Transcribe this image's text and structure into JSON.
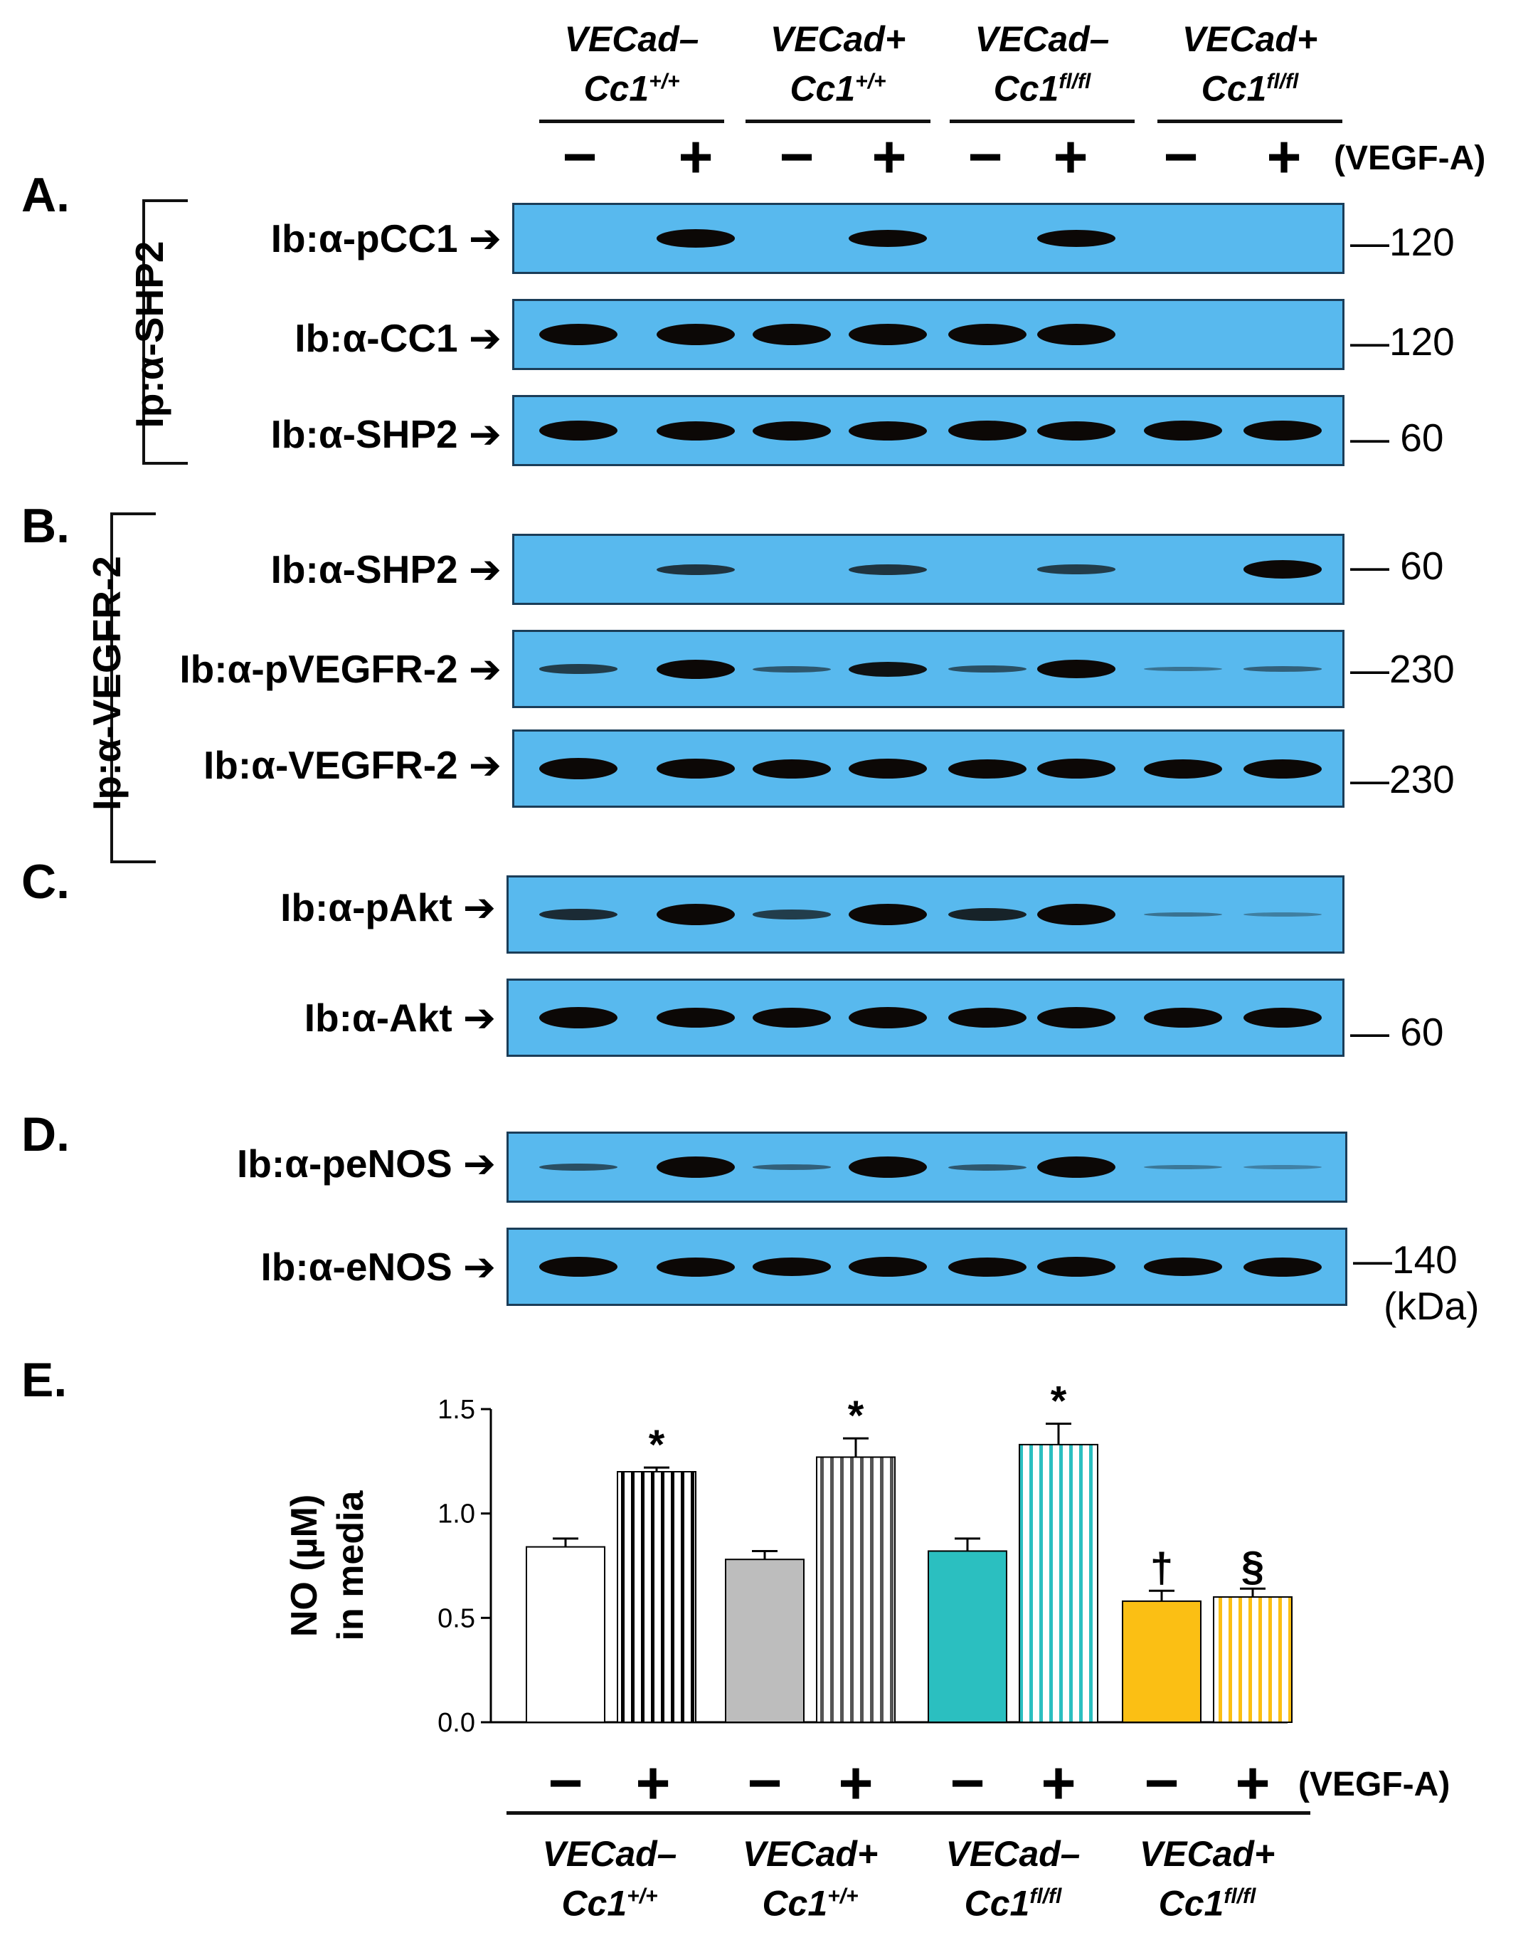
{
  "groups": [
    {
      "top": "VECad–",
      "bottom_base": "Cc1",
      "bottom_sup": "+/+"
    },
    {
      "top": "VECad+",
      "bottom_base": "Cc1",
      "bottom_sup": "+/+"
    },
    {
      "top": "VECad–",
      "bottom_base": "Cc1",
      "bottom_sup": "fl/fl"
    },
    {
      "top": "VECad+",
      "bottom_base": "Cc1",
      "bottom_sup": "fl/fl"
    }
  ],
  "treatment": {
    "minus": "−",
    "plus": "+",
    "label": "(VEGF-A)"
  },
  "panels": {
    "A": {
      "letter": "A.",
      "ip": "Ip:α-SHP2"
    },
    "B": {
      "letter": "B.",
      "ip": "Ip:α-VEGFR-2"
    },
    "C": {
      "letter": "C."
    },
    "D": {
      "letter": "D."
    },
    "E": {
      "letter": "E."
    }
  },
  "blots": [
    {
      "label": "Ib:α-pCC1 ➔",
      "mw": "—120",
      "bands": [
        0,
        0.85,
        0,
        0.8,
        0,
        0.8,
        0,
        0
      ]
    },
    {
      "label": "Ib:α-CC1 ➔",
      "mw": "—120",
      "bands": [
        1,
        1,
        1,
        1,
        1,
        1,
        0,
        0
      ]
    },
    {
      "label": "Ib:α-SHP2 ➔",
      "mw": "— 60",
      "bands": [
        0.95,
        0.9,
        0.9,
        0.9,
        0.95,
        0.9,
        0.95,
        0.95
      ]
    },
    {
      "label": "Ib:α-SHP2 ➔",
      "mw": "— 60",
      "bands": [
        0,
        0.5,
        0,
        0.5,
        0,
        0.45,
        0,
        0.85
      ]
    },
    {
      "label": "Ib:α-pVEGFR-2 ➔",
      "mw": "—230",
      "bands": [
        0.45,
        0.9,
        0.3,
        0.7,
        0.35,
        0.85,
        0.15,
        0.25
      ]
    },
    {
      "label": "Ib:α-VEGFR-2 ➔",
      "mw": "—230",
      "bands": [
        1,
        0.95,
        0.9,
        0.95,
        0.9,
        0.95,
        0.9,
        0.9
      ]
    },
    {
      "label": "Ib:α-pAkt ➔",
      "mw": "",
      "bands": [
        0.55,
        1,
        0.45,
        1,
        0.6,
        1,
        0.15,
        0.08
      ]
    },
    {
      "label": "Ib:α-Akt ➔",
      "mw": "— 60",
      "bands": [
        1,
        0.95,
        0.95,
        1,
        0.95,
        1,
        0.95,
        0.95
      ]
    },
    {
      "label": "Ib:α-peNOS ➔",
      "mw": "",
      "bands": [
        0.35,
        1,
        0.25,
        1,
        0.3,
        1,
        0.12,
        0.06
      ]
    },
    {
      "label": "Ib:α-eNOS ➔",
      "mw": "—140",
      "bands": [
        0.95,
        0.9,
        0.85,
        0.95,
        0.9,
        0.95,
        0.85,
        0.9
      ]
    }
  ],
  "kda_label": "(kDa)",
  "chart_data": {
    "type": "bar",
    "ylabel": "NO (µM) in media",
    "ylim": [
      0.0,
      1.5
    ],
    "yticks": [
      "0.0",
      "0.5",
      "1.0",
      "1.5"
    ],
    "categories": [
      "VECad– Cc1+/+ −",
      "VECad– Cc1+/+ +",
      "VECad+ Cc1+/+ −",
      "VECad+ Cc1+/+ +",
      "VECad– Cc1fl/fl −",
      "VECad– Cc1fl/fl +",
      "VECad+ Cc1fl/fl −",
      "VECad+ Cc1fl/fl +"
    ],
    "values": [
      0.84,
      1.2,
      0.78,
      1.27,
      0.82,
      1.33,
      0.58,
      0.6
    ],
    "errors": [
      0.04,
      0.02,
      0.04,
      0.09,
      0.06,
      0.1,
      0.05,
      0.04
    ],
    "annotations": [
      "",
      "*",
      "",
      "*",
      "",
      "*",
      "†",
      "§"
    ],
    "colors": [
      "#ffffff",
      "#ffffff",
      "#bdbdbd",
      "#bdbdbd",
      "#2bbfc0",
      "#ffffff",
      "#fbbf14",
      "#ffffff"
    ],
    "stripe_colors": [
      "",
      "#000000",
      "",
      "#555555",
      "",
      "#2bbfc0",
      "",
      "#fbbf14"
    ]
  }
}
